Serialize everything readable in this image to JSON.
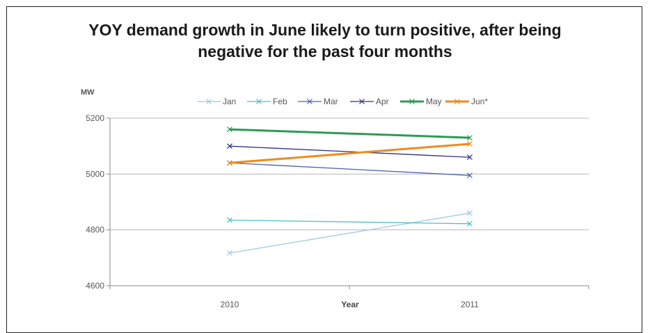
{
  "chart_data": {
    "type": "line",
    "title_line1": "YOY demand growth in June likely to turn positive, after being",
    "title_line2": "negative for the past four months",
    "ylabel": "MW",
    "xlabel": "Year",
    "categories": [
      "2010",
      "2011"
    ],
    "ylim": [
      4600,
      5200
    ],
    "yticks": [
      4600,
      4800,
      5000,
      5200
    ],
    "grid": true,
    "legend_position": "top",
    "series": [
      {
        "name": "Jan",
        "values": [
          4717,
          4860
        ],
        "color": "#9cc8e3"
      },
      {
        "name": "Feb",
        "values": [
          4835,
          4822
        ],
        "color": "#4cc0c8"
      },
      {
        "name": "Mar",
        "values": [
          5040,
          4995
        ],
        "color": "#4a5fb0"
      },
      {
        "name": "Apr",
        "values": [
          5100,
          5060
        ],
        "color": "#2e2f86"
      },
      {
        "name": "May",
        "values": [
          5160,
          5130
        ],
        "color": "#2c9a55"
      },
      {
        "name": "Jun*",
        "values": [
          5040,
          5108
        ],
        "color": "#f08a1c"
      }
    ]
  }
}
